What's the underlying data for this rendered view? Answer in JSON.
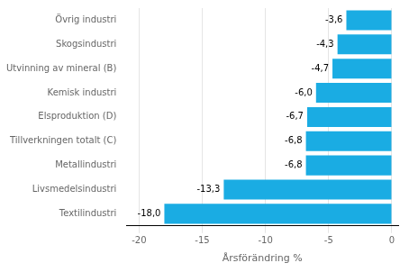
{
  "chart_data": {
    "type": "bar",
    "orientation": "horizontal",
    "categories": [
      "Textilindustri",
      "Livsmedelsindustri",
      "Metallindustri",
      "Tillverkningen totalt (C)",
      "Elsproduktion (D)",
      "Kemisk industri",
      "Utvinning av mineral (B)",
      "Skogsindustri",
      "Övrig industri"
    ],
    "values": [
      -18.0,
      -13.3,
      -6.8,
      -6.8,
      -6.7,
      -6.0,
      -4.7,
      -4.3,
      -3.6
    ],
    "value_labels": [
      "-18,0",
      "-13,3",
      "-6,8",
      "-6,8",
      "-6,7",
      "-6,0",
      "-4,7",
      "-4,3",
      "-3,6"
    ],
    "data_labels": true,
    "color": "#1aace3",
    "xlabel": "Årsförändring %",
    "xlim": [
      -21,
      0.5
    ],
    "xticks": [
      -20,
      -15,
      -10,
      -5,
      0
    ],
    "grid": true
  }
}
